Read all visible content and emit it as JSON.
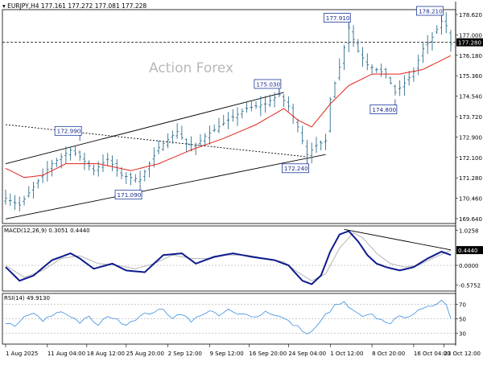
{
  "chart_data": {
    "type": "candlestick",
    "header": {
      "symbol_tf": "EURJPY,H4",
      "ohlc": [
        "177.161",
        "177.272",
        "177.081",
        "177.228"
      ]
    },
    "watermark": "Action Forex",
    "price_axis": {
      "range": [
        169.4,
        178.7
      ],
      "ticks": [
        "178.620",
        "177.000",
        "176.180",
        "175.360",
        "174.540",
        "173.720",
        "172.900",
        "172.100",
        "171.280",
        "170.460",
        "169.640"
      ],
      "current_price_label": "177.280",
      "current_price": 177.28
    },
    "time_axis": {
      "labels": [
        "1 Aug 2025",
        "11 Aug 04:00",
        "18 Aug 12:00",
        "25 Aug 20:00",
        "2 Sep 12:00",
        "9 Sep 12:00",
        "16 Sep 20:00",
        "24 Sep 04:00",
        "1 Oct 12:00",
        "8 Oct 20:00",
        "16 Oct 04:00",
        "23 Oct 12:00"
      ]
    },
    "price_waypoints": [
      [
        0,
        170.5
      ],
      [
        3,
        170.2
      ],
      [
        6,
        171.0
      ],
      [
        10,
        172.0
      ],
      [
        14,
        172.6
      ],
      [
        16,
        172.3
      ],
      [
        19,
        171.7
      ],
      [
        22,
        172.2
      ],
      [
        25,
        171.5
      ],
      [
        29,
        171.3
      ],
      [
        33,
        172.7
      ],
      [
        37,
        173.4
      ],
      [
        40,
        172.6
      ],
      [
        43,
        173.2
      ],
      [
        48,
        173.9
      ],
      [
        52,
        174.4
      ],
      [
        56,
        174.6
      ],
      [
        59,
        175.0
      ],
      [
        61,
        174.5
      ],
      [
        63,
        173.6
      ],
      [
        65,
        172.4
      ],
      [
        67,
        172.8
      ],
      [
        69,
        173.0
      ],
      [
        70,
        174.8
      ],
      [
        72,
        176.2
      ],
      [
        74,
        177.9
      ],
      [
        76,
        176.9
      ],
      [
        78,
        176.3
      ],
      [
        80,
        176.1
      ],
      [
        82,
        175.9
      ],
      [
        84,
        175.1
      ],
      [
        86,
        175.5
      ],
      [
        88,
        176.0
      ],
      [
        90,
        177.0
      ],
      [
        92,
        177.5
      ],
      [
        94,
        178.2
      ],
      [
        95,
        178.0
      ],
      [
        96,
        177.2
      ]
    ],
    "ma_waypoints": [
      [
        0,
        171.8
      ],
      [
        4,
        171.4
      ],
      [
        8,
        171.5
      ],
      [
        13,
        172.0
      ],
      [
        20,
        172.0
      ],
      [
        27,
        171.7
      ],
      [
        33,
        172.0
      ],
      [
        40,
        172.6
      ],
      [
        47,
        173.1
      ],
      [
        54,
        173.7
      ],
      [
        60,
        174.4
      ],
      [
        63,
        173.9
      ],
      [
        66,
        173.6
      ],
      [
        70,
        174.6
      ],
      [
        74,
        175.4
      ],
      [
        79,
        175.9
      ],
      [
        85,
        175.9
      ],
      [
        90,
        176.1
      ],
      [
        96,
        176.7
      ]
    ],
    "annotations": [
      {
        "label": "172.990",
        "bar": 16,
        "price": 172.99,
        "box": "left",
        "pointer": "below"
      },
      {
        "label": "171.090",
        "bar": 29,
        "price": 171.09,
        "box": "left",
        "pointer": "above"
      },
      {
        "label": "175.030",
        "bar": 59,
        "price": 175.03,
        "box": "left",
        "pointer": "below"
      },
      {
        "label": "172.240",
        "bar": 65,
        "price": 172.24,
        "box": "left",
        "pointer": "above"
      },
      {
        "label": "177.910",
        "bar": 74,
        "price": 177.91,
        "box": "left",
        "pointer": "below"
      },
      {
        "label": "174.800",
        "bar": 84,
        "price": 174.8,
        "box": "left",
        "pointer": "above"
      },
      {
        "label": "178.210",
        "bar": 94,
        "price": 178.21,
        "box": "left",
        "pointer": "below"
      }
    ],
    "trendlines": [
      {
        "from": [
          0,
          172.0
        ],
        "to": [
          60,
          175.1
        ],
        "style": "solid"
      },
      {
        "from": [
          0,
          173.7
        ],
        "to": [
          65,
          172.3
        ],
        "style": "dashed"
      },
      {
        "from": [
          0,
          169.6
        ],
        "to": [
          69,
          172.4
        ],
        "style": "solid"
      }
    ],
    "macd": {
      "title": "MACD(12,26,9) 0.3051 0.4440",
      "ticks": [
        "1.0258",
        "0.4440",
        "0.0000",
        "-0.5752"
      ],
      "range": [
        -0.75,
        1.15
      ],
      "main_waypoints": [
        [
          0,
          -0.05
        ],
        [
          3,
          -0.45
        ],
        [
          6,
          -0.3
        ],
        [
          10,
          0.15
        ],
        [
          14,
          0.35
        ],
        [
          16,
          0.2
        ],
        [
          19,
          -0.1
        ],
        [
          23,
          0.05
        ],
        [
          26,
          -0.15
        ],
        [
          30,
          -0.2
        ],
        [
          34,
          0.3
        ],
        [
          38,
          0.35
        ],
        [
          41,
          0.05
        ],
        [
          45,
          0.25
        ],
        [
          49,
          0.35
        ],
        [
          53,
          0.25
        ],
        [
          58,
          0.15
        ],
        [
          61,
          0.0
        ],
        [
          64,
          -0.45
        ],
        [
          66,
          -0.55
        ],
        [
          68,
          -0.3
        ],
        [
          70,
          0.4
        ],
        [
          72,
          0.9
        ],
        [
          74,
          1.0
        ],
        [
          76,
          0.7
        ],
        [
          78,
          0.3
        ],
        [
          80,
          0.05
        ],
        [
          82,
          -0.05
        ],
        [
          85,
          -0.15
        ],
        [
          88,
          -0.05
        ],
        [
          91,
          0.2
        ],
        [
          94,
          0.4
        ],
        [
          96,
          0.3
        ]
      ],
      "signal_waypoints": [
        [
          0,
          0.0
        ],
        [
          4,
          -0.35
        ],
        [
          8,
          -0.15
        ],
        [
          12,
          0.2
        ],
        [
          16,
          0.28
        ],
        [
          20,
          0.05
        ],
        [
          24,
          0.0
        ],
        [
          28,
          -0.1
        ],
        [
          32,
          0.05
        ],
        [
          36,
          0.3
        ],
        [
          40,
          0.2
        ],
        [
          44,
          0.2
        ],
        [
          48,
          0.3
        ],
        [
          52,
          0.3
        ],
        [
          56,
          0.2
        ],
        [
          60,
          0.1
        ],
        [
          63,
          -0.2
        ],
        [
          66,
          -0.45
        ],
        [
          69,
          -0.25
        ],
        [
          72,
          0.5
        ],
        [
          75,
          0.95
        ],
        [
          77,
          0.8
        ],
        [
          80,
          0.35
        ],
        [
          83,
          0.05
        ],
        [
          86,
          -0.05
        ],
        [
          89,
          0.0
        ],
        [
          92,
          0.2
        ],
        [
          96,
          0.44
        ]
      ],
      "trendline": {
        "from": [
          73,
          1.05
        ],
        "to": [
          96,
          0.45
        ]
      }
    },
    "rsi": {
      "title": "RSI(14) 49.9130",
      "ticks": [
        "70",
        "50",
        "30"
      ],
      "range": [
        15,
        85
      ],
      "levels": [
        70,
        50,
        30
      ],
      "waypoints": [
        [
          0,
          45
        ],
        [
          2,
          38
        ],
        [
          4,
          52
        ],
        [
          6,
          58
        ],
        [
          8,
          46
        ],
        [
          10,
          55
        ],
        [
          12,
          60
        ],
        [
          14,
          54
        ],
        [
          16,
          45
        ],
        [
          18,
          52
        ],
        [
          20,
          40
        ],
        [
          22,
          55
        ],
        [
          24,
          48
        ],
        [
          26,
          43
        ],
        [
          28,
          50
        ],
        [
          30,
          56
        ],
        [
          32,
          60
        ],
        [
          34,
          62
        ],
        [
          36,
          52
        ],
        [
          38,
          58
        ],
        [
          40,
          45
        ],
        [
          42,
          56
        ],
        [
          44,
          60
        ],
        [
          46,
          54
        ],
        [
          48,
          62
        ],
        [
          50,
          55
        ],
        [
          52,
          58
        ],
        [
          54,
          52
        ],
        [
          56,
          60
        ],
        [
          58,
          56
        ],
        [
          60,
          50
        ],
        [
          62,
          42
        ],
        [
          64,
          35
        ],
        [
          65,
          28
        ],
        [
          67,
          38
        ],
        [
          69,
          55
        ],
        [
          71,
          68
        ],
        [
          73,
          72
        ],
        [
          75,
          60
        ],
        [
          77,
          52
        ],
        [
          79,
          55
        ],
        [
          81,
          48
        ],
        [
          83,
          45
        ],
        [
          85,
          52
        ],
        [
          87,
          55
        ],
        [
          89,
          60
        ],
        [
          91,
          65
        ],
        [
          93,
          72
        ],
        [
          94,
          78
        ],
        [
          95,
          70
        ],
        [
          96,
          50
        ]
      ]
    }
  }
}
